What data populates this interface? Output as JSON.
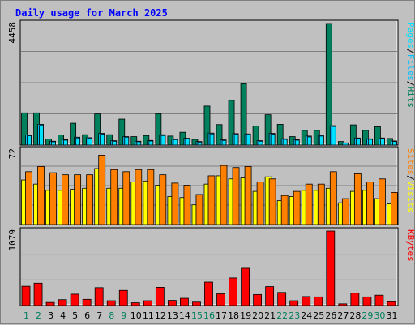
{
  "title": "Daily usage for March 2025",
  "colors": {
    "hits": "#00805c",
    "files": "#00c0ff",
    "pages": "#00e0ff",
    "visits": "#ffff00",
    "sites": "#ff8000",
    "kbytes": "#ff0000",
    "title": "#0000ff",
    "weekend_tick": "#00805c",
    "weekday_tick": "#000000",
    "panel_bg": "#c0c0c0"
  },
  "chart_data": [
    {
      "type": "bar",
      "panel": "top",
      "y_max_label": "4458",
      "ylim": [
        0,
        4458
      ],
      "right_labels": [
        "Pages",
        "/",
        "Files",
        "/",
        "Hits"
      ],
      "categories": [
        "1",
        "2",
        "3",
        "4",
        "5",
        "6",
        "7",
        "8",
        "9",
        "10",
        "11",
        "12",
        "13",
        "14",
        "15",
        "16",
        "17",
        "18",
        "19",
        "20",
        "21",
        "22",
        "23",
        "24",
        "25",
        "26",
        "27",
        "28",
        "29",
        "30",
        "31"
      ],
      "series": [
        {
          "name": "Hits",
          "values": [
            1180,
            1180,
            220,
            370,
            800,
            380,
            1140,
            380,
            950,
            310,
            350,
            1150,
            330,
            470,
            210,
            1430,
            750,
            1640,
            2250,
            700,
            1110,
            760,
            310,
            540,
            540,
            4458,
            130,
            740,
            540,
            670,
            240
          ]
        },
        {
          "name": "Files",
          "values": [
            370,
            760,
            140,
            200,
            290,
            270,
            430,
            160,
            310,
            140,
            170,
            380,
            220,
            250,
            130,
            440,
            190,
            420,
            410,
            160,
            430,
            230,
            200,
            330,
            360,
            710,
            80,
            260,
            230,
            260,
            150
          ]
        },
        {
          "name": "Pages",
          "values": [
            340,
            720,
            120,
            180,
            260,
            240,
            400,
            140,
            290,
            120,
            150,
            350,
            200,
            230,
            110,
            410,
            170,
            390,
            380,
            140,
            400,
            210,
            180,
            300,
            330,
            680,
            70,
            240,
            210,
            240,
            130
          ]
        }
      ]
    },
    {
      "type": "bar",
      "panel": "middle",
      "y_max_label": "72",
      "ylim": [
        0,
        72
      ],
      "right_labels": [
        "Sites",
        "/",
        "Visits"
      ],
      "categories": [
        "1",
        "2",
        "3",
        "4",
        "5",
        "6",
        "7",
        "8",
        "9",
        "10",
        "11",
        "12",
        "13",
        "14",
        "15",
        "16",
        "17",
        "18",
        "19",
        "20",
        "21",
        "22",
        "23",
        "24",
        "25",
        "26",
        "27",
        "28",
        "29",
        "30",
        "31"
      ],
      "series": [
        {
          "name": "Visits",
          "values": [
            43,
            39,
            33,
            33,
            34,
            35,
            54,
            35,
            35,
            41,
            42,
            38,
            27,
            26,
            19,
            39,
            47,
            44,
            45,
            32,
            46,
            23,
            27,
            33,
            33,
            35,
            21,
            32,
            33,
            25,
            20
          ]
        },
        {
          "name": "Sites",
          "values": [
            51,
            56,
            50,
            48,
            48,
            48,
            67,
            53,
            51,
            53,
            53,
            48,
            40,
            38,
            29,
            47,
            57,
            55,
            56,
            41,
            44,
            28,
            32,
            39,
            39,
            51,
            25,
            49,
            41,
            44,
            31
          ]
        }
      ]
    },
    {
      "type": "bar",
      "panel": "bottom",
      "y_max_label": "1079",
      "ylim": [
        0,
        1079
      ],
      "right_labels": [
        "KBytes"
      ],
      "categories": [
        "1",
        "2",
        "3",
        "4",
        "5",
        "6",
        "7",
        "8",
        "9",
        "10",
        "11",
        "12",
        "13",
        "14",
        "15",
        "16",
        "17",
        "18",
        "19",
        "20",
        "21",
        "22",
        "23",
        "24",
        "25",
        "26",
        "27",
        "28",
        "29",
        "30",
        "31"
      ],
      "series": [
        {
          "name": "KBytes",
          "values": [
            280,
            325,
            45,
            85,
            165,
            90,
            260,
            70,
            220,
            40,
            70,
            265,
            75,
            105,
            50,
            340,
            170,
            400,
            540,
            160,
            275,
            190,
            70,
            130,
            125,
            1079,
            25,
            180,
            125,
            150,
            55
          ]
        }
      ],
      "weekend_days": [
        "1",
        "2",
        "8",
        "9",
        "15",
        "16",
        "22",
        "23",
        "29",
        "30"
      ]
    }
  ]
}
